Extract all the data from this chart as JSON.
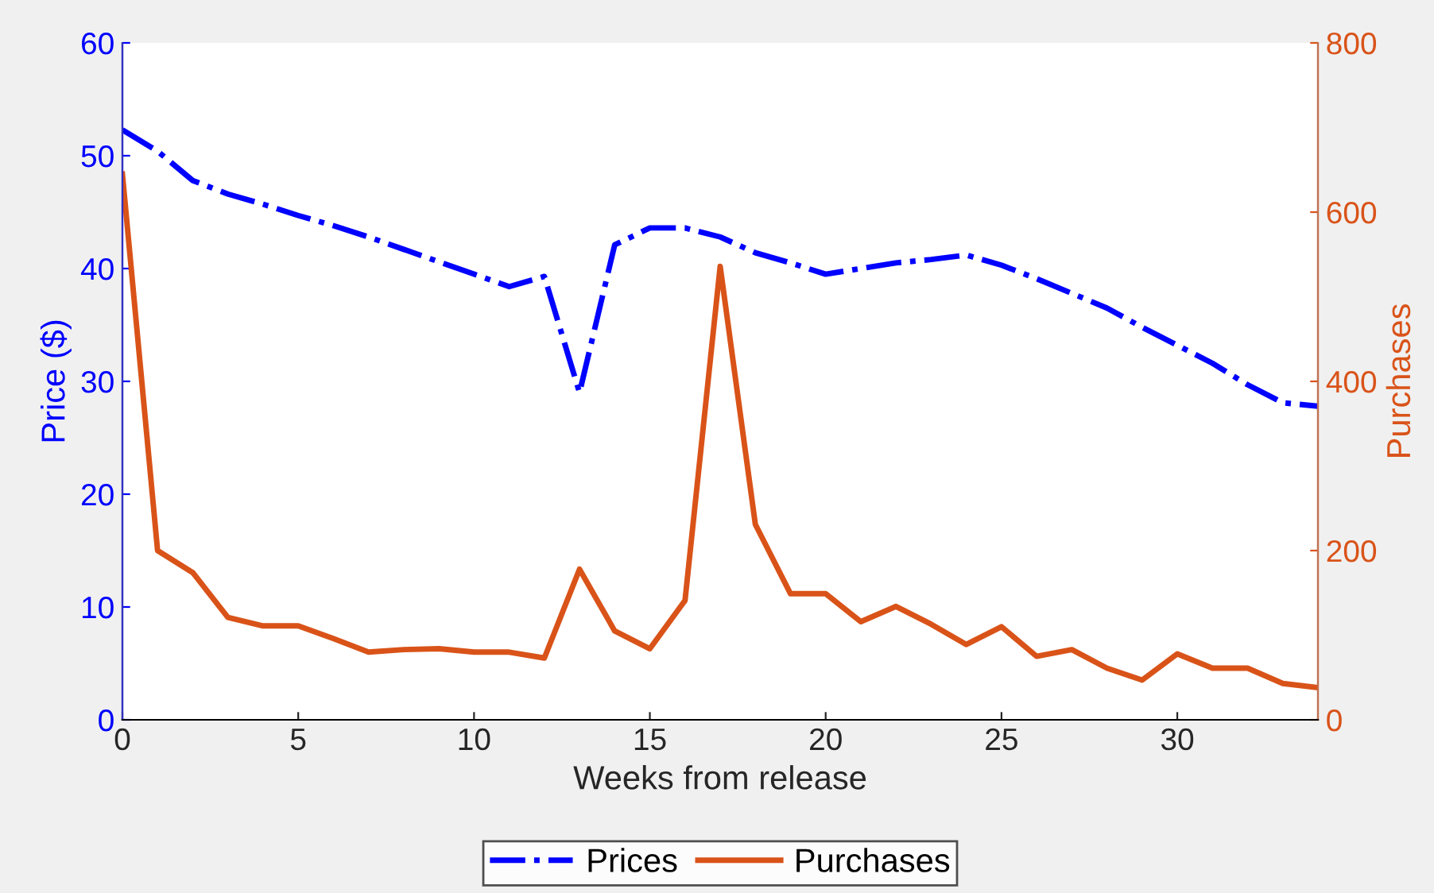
{
  "chart_data": {
    "type": "line",
    "xlabel": "Weeks from release",
    "ylabel": "Price ($)",
    "y2label": "Purchases",
    "x": [
      0,
      1,
      2,
      3,
      4,
      5,
      6,
      7,
      8,
      9,
      10,
      11,
      12,
      13,
      14,
      15,
      16,
      17,
      18,
      19,
      20,
      21,
      22,
      23,
      24,
      25,
      26,
      27,
      28,
      29,
      30,
      31,
      32,
      33,
      34
    ],
    "series": [
      {
        "name": "Prices",
        "color": "#0000ff",
        "line_style": "dashdot",
        "values": [
          52.3,
          50.4,
          47.8,
          46.6,
          45.7,
          44.7,
          43.8,
          42.8,
          41.7,
          40.6,
          39.5,
          38.4,
          39.3,
          29.0,
          42.1,
          43.6,
          43.6,
          42.8,
          41.4,
          40.5,
          39.5,
          40.0,
          40.5,
          40.8,
          41.2,
          40.3,
          39.1,
          37.8,
          36.5,
          34.8,
          33.2,
          31.6,
          29.7,
          28.1,
          27.8
        ]
      },
      {
        "name": "Purchases",
        "color": "#d95319",
        "line_style": "solid",
        "axis": "y2",
        "values": [
          645,
          200,
          174,
          121,
          111,
          111,
          96,
          80,
          83,
          84,
          80,
          80,
          73,
          178,
          105,
          84,
          141,
          536,
          231,
          149,
          149,
          116,
          134,
          113,
          89,
          110,
          75,
          83,
          61,
          47,
          78,
          61,
          61,
          43,
          38
        ]
      }
    ],
    "xlim": [
      0,
      34
    ],
    "xticks": [
      0,
      5,
      10,
      15,
      20,
      25,
      30
    ],
    "ylim": [
      0,
      60
    ],
    "yticks": [
      0,
      10,
      20,
      30,
      40,
      50,
      60
    ],
    "y2lim": [
      0,
      800
    ],
    "y2ticks": [
      0,
      200,
      400,
      600,
      800
    ],
    "grid": false,
    "legend": "bottom",
    "marker": "none"
  }
}
